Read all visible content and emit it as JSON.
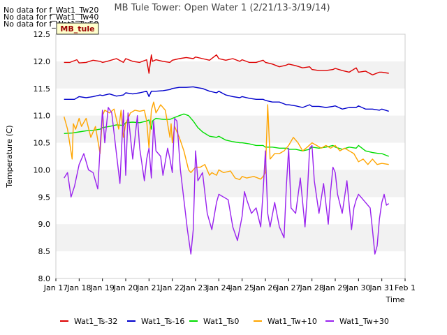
{
  "no_data_notes": [
    "No data for f_Wat1_Tw20",
    "No data for f_Wat1_Tw40",
    "No data for f_Wat1_Tw50"
  ],
  "badge_label": "MB_tule",
  "colors": {
    "badge_bg": "#ffffcc",
    "badge_text": "#990000",
    "band": "#f2f2f2"
  },
  "chart_data": {
    "type": "line",
    "title": "MB Tule Tower: Open Water 1 (2/21/13-3/19/14)",
    "xlabel": "Time",
    "ylabel": "Temperature (C)",
    "xlim": [
      17,
      32
    ],
    "ylim": [
      8.0,
      12.5
    ],
    "grid": "alternating horizontal bands",
    "legend_position": "bottom",
    "x_ticks": [
      {
        "value": 17,
        "label": "Jan 17"
      },
      {
        "value": 18,
        "label": "Jan 18"
      },
      {
        "value": 19,
        "label": "Jan 19"
      },
      {
        "value": 20,
        "label": "Jan 20"
      },
      {
        "value": 21,
        "label": "Jan 21"
      },
      {
        "value": 22,
        "label": "Jan 22"
      },
      {
        "value": 23,
        "label": "Jan 23"
      },
      {
        "value": 24,
        "label": "Jan 24"
      },
      {
        "value": 25,
        "label": "Jan 25"
      },
      {
        "value": 26,
        "label": "Jan 26"
      },
      {
        "value": 27,
        "label": "Jan 27"
      },
      {
        "value": 28,
        "label": "Jan 28"
      },
      {
        "value": 29,
        "label": "Jan 29"
      },
      {
        "value": 30,
        "label": "Jan 30"
      },
      {
        "value": 31,
        "label": "Jan 31"
      },
      {
        "value": 32,
        "label": "Feb 1"
      }
    ],
    "y_ticks": [
      8.0,
      8.5,
      9.0,
      9.5,
      10.0,
      10.5,
      11.0,
      11.5,
      12.0,
      12.5
    ],
    "series": [
      {
        "name": "Wat1_Ts-32",
        "color": "#dd0000",
        "x": [
          17.35,
          17.6,
          17.9,
          18.0,
          18.3,
          18.6,
          18.9,
          19.0,
          19.2,
          19.6,
          19.9,
          20.0,
          20.3,
          20.6,
          20.9,
          21.0,
          21.1,
          21.15,
          21.3,
          21.6,
          21.9,
          22.0,
          22.3,
          22.6,
          22.9,
          23.0,
          23.3,
          23.6,
          23.9,
          24.0,
          24.3,
          24.6,
          24.9,
          25.0,
          25.3,
          25.6,
          25.9,
          26.0,
          26.3,
          26.6,
          26.9,
          27.0,
          27.3,
          27.6,
          27.9,
          28.0,
          28.3,
          28.6,
          28.9,
          29.0,
          29.3,
          29.6,
          29.9,
          30.0,
          30.3,
          30.6,
          30.9,
          31.0,
          31.3
        ],
        "y": [
          11.98,
          11.98,
          12.03,
          11.97,
          11.98,
          12.02,
          12.0,
          11.98,
          12.0,
          12.05,
          11.98,
          12.05,
          12.0,
          11.98,
          12.03,
          11.78,
          12.12,
          12.0,
          12.03,
          12.0,
          11.98,
          12.02,
          12.05,
          12.07,
          12.05,
          12.08,
          12.05,
          12.02,
          12.12,
          12.05,
          12.02,
          12.05,
          12.0,
          12.03,
          11.98,
          11.98,
          12.02,
          11.98,
          11.95,
          11.9,
          11.93,
          11.95,
          11.92,
          11.88,
          11.9,
          11.85,
          11.83,
          11.83,
          11.85,
          11.87,
          11.83,
          11.8,
          11.88,
          11.8,
          11.82,
          11.75,
          11.8,
          11.8,
          11.78
        ]
      },
      {
        "name": "Wat1_Ts-16",
        "color": "#0000cc",
        "x": [
          17.35,
          17.8,
          18.0,
          18.3,
          18.6,
          18.9,
          19.0,
          19.3,
          19.6,
          19.9,
          20.0,
          20.3,
          20.6,
          20.9,
          21.0,
          21.1,
          21.3,
          21.6,
          21.9,
          22.0,
          22.3,
          22.6,
          22.9,
          23.0,
          23.3,
          23.6,
          23.9,
          24.0,
          24.3,
          24.6,
          24.9,
          25.0,
          25.3,
          25.6,
          25.9,
          26.0,
          26.3,
          26.6,
          26.9,
          27.0,
          27.3,
          27.6,
          27.9,
          28.0,
          28.3,
          28.6,
          28.9,
          29.0,
          29.3,
          29.6,
          29.9,
          30.0,
          30.3,
          30.6,
          30.9,
          31.0,
          31.3
        ],
        "y": [
          11.3,
          11.3,
          11.35,
          11.33,
          11.35,
          11.38,
          11.37,
          11.4,
          11.36,
          11.38,
          11.42,
          11.4,
          11.42,
          11.45,
          11.35,
          11.45,
          11.45,
          11.46,
          11.48,
          11.5,
          11.52,
          11.52,
          11.53,
          11.52,
          11.5,
          11.45,
          11.42,
          11.45,
          11.38,
          11.35,
          11.33,
          11.35,
          11.32,
          11.3,
          11.3,
          11.28,
          11.25,
          11.25,
          11.2,
          11.2,
          11.18,
          11.15,
          11.2,
          11.17,
          11.17,
          11.15,
          11.17,
          11.18,
          11.12,
          11.15,
          11.15,
          11.18,
          11.12,
          11.12,
          11.1,
          11.12,
          11.08
        ]
      },
      {
        "name": "Wat1_Ts0",
        "color": "#00dd00",
        "x": [
          17.35,
          17.7,
          18.0,
          18.3,
          18.6,
          18.9,
          19.0,
          19.3,
          19.6,
          19.9,
          20.0,
          20.3,
          20.6,
          20.9,
          21.0,
          21.1,
          21.15,
          21.2,
          21.3,
          21.6,
          21.9,
          22.0,
          22.3,
          22.5,
          22.7,
          22.9,
          23.1,
          23.3,
          23.6,
          23.9,
          24.0,
          24.3,
          24.6,
          24.9,
          25.0,
          25.3,
          25.6,
          25.9,
          26.0,
          26.3,
          26.6,
          26.9,
          27.0,
          27.3,
          27.6,
          27.9,
          28.0,
          28.3,
          28.6,
          28.9,
          29.0,
          29.3,
          29.6,
          29.9,
          30.0,
          30.3,
          30.6,
          30.9,
          31.0,
          31.3
        ],
        "y": [
          10.67,
          10.68,
          10.7,
          10.72,
          10.73,
          10.75,
          10.78,
          10.8,
          10.83,
          10.82,
          10.87,
          10.88,
          10.87,
          10.9,
          10.92,
          10.75,
          10.9,
          10.92,
          10.95,
          10.93,
          10.93,
          10.95,
          11.0,
          11.03,
          11.0,
          10.9,
          10.78,
          10.7,
          10.62,
          10.6,
          10.62,
          10.55,
          10.52,
          10.5,
          10.5,
          10.48,
          10.45,
          10.45,
          10.42,
          10.42,
          10.4,
          10.4,
          10.38,
          10.38,
          10.35,
          10.38,
          10.42,
          10.4,
          10.42,
          10.45,
          10.42,
          10.38,
          10.42,
          10.4,
          10.45,
          10.35,
          10.32,
          10.3,
          10.3,
          10.25
        ]
      },
      {
        "name": "Wat1_Tw+10",
        "color": "#ffa500",
        "x": [
          17.35,
          17.5,
          17.7,
          17.75,
          17.85,
          18.0,
          18.1,
          18.3,
          18.5,
          18.7,
          18.9,
          19.0,
          19.1,
          19.3,
          19.5,
          19.7,
          19.8,
          19.9,
          20.0,
          20.2,
          20.4,
          20.6,
          20.8,
          20.9,
          21.0,
          21.1,
          21.2,
          21.3,
          21.5,
          21.7,
          21.9,
          21.95,
          22.0,
          22.1,
          22.3,
          22.5,
          22.7,
          22.8,
          23.0,
          23.2,
          23.4,
          23.6,
          23.7,
          23.9,
          24.0,
          24.2,
          24.5,
          24.7,
          24.9,
          25.0,
          25.2,
          25.5,
          25.8,
          25.9,
          26.0,
          26.1,
          26.15,
          26.2,
          26.4,
          26.6,
          26.8,
          27.0,
          27.2,
          27.4,
          27.6,
          27.8,
          28.0,
          28.2,
          28.4,
          28.6,
          28.8,
          29.0,
          29.2,
          29.4,
          29.6,
          29.8,
          30.0,
          30.2,
          30.4,
          30.6,
          30.8,
          31.0,
          31.3
        ],
        "y": [
          10.98,
          10.75,
          10.2,
          10.85,
          10.75,
          10.95,
          10.8,
          10.95,
          10.6,
          10.8,
          10.3,
          11.0,
          11.1,
          11.05,
          11.12,
          10.75,
          11.1,
          10.6,
          10.85,
          11.05,
          11.1,
          11.08,
          11.1,
          10.9,
          10.4,
          11.1,
          11.25,
          11.05,
          11.2,
          11.1,
          10.6,
          10.85,
          10.5,
          10.8,
          10.6,
          10.35,
          10.0,
          9.95,
          10.05,
          10.05,
          10.1,
          9.9,
          9.95,
          9.9,
          10.0,
          9.95,
          9.98,
          9.85,
          9.82,
          9.88,
          9.85,
          9.88,
          9.83,
          9.88,
          9.95,
          11.2,
          10.7,
          10.2,
          10.3,
          10.3,
          10.35,
          10.45,
          10.6,
          10.5,
          10.35,
          10.42,
          10.5,
          10.45,
          10.4,
          10.45,
          10.4,
          10.45,
          10.35,
          10.4,
          10.35,
          10.3,
          10.15,
          10.2,
          10.1,
          10.2,
          10.1,
          10.12,
          10.1
        ]
      },
      {
        "name": "Wat1_Tw+30",
        "color": "#9922ee",
        "x": [
          17.35,
          17.5,
          17.65,
          17.8,
          18.0,
          18.2,
          18.4,
          18.6,
          18.8,
          18.9,
          19.0,
          19.1,
          19.25,
          19.4,
          19.6,
          19.75,
          19.9,
          20.0,
          20.1,
          20.3,
          20.5,
          20.6,
          20.8,
          20.9,
          21.0,
          21.1,
          21.2,
          21.3,
          21.5,
          21.6,
          21.8,
          21.9,
          22.0,
          22.1,
          22.2,
          22.35,
          22.5,
          22.65,
          22.8,
          22.9,
          23.0,
          23.1,
          23.3,
          23.5,
          23.7,
          23.9,
          24.0,
          24.2,
          24.4,
          24.6,
          24.8,
          25.0,
          25.1,
          25.2,
          25.4,
          25.6,
          25.8,
          25.9,
          26.0,
          26.1,
          26.2,
          26.4,
          26.6,
          26.8,
          26.9,
          27.0,
          27.1,
          27.3,
          27.5,
          27.7,
          27.8,
          27.9,
          28.0,
          28.1,
          28.3,
          28.5,
          28.7,
          28.8,
          28.9,
          29.0,
          29.1,
          29.3,
          29.5,
          29.7,
          29.8,
          29.9,
          30.0,
          30.1,
          30.3,
          30.5,
          30.6,
          30.7,
          30.8,
          30.9,
          31.0,
          31.1,
          31.2,
          31.3
        ],
        "y": [
          9.85,
          9.95,
          9.5,
          9.7,
          10.1,
          10.3,
          10.0,
          9.95,
          9.65,
          10.4,
          11.1,
          10.5,
          11.15,
          11.05,
          10.3,
          9.75,
          11.1,
          9.9,
          11.05,
          10.2,
          11.0,
          10.4,
          9.8,
          10.2,
          10.4,
          9.85,
          10.9,
          10.35,
          10.25,
          9.9,
          10.4,
          10.2,
          9.95,
          10.95,
          10.9,
          10.0,
          9.45,
          8.9,
          8.45,
          8.9,
          10.35,
          9.8,
          9.95,
          9.2,
          8.9,
          9.4,
          9.55,
          9.5,
          9.45,
          8.95,
          8.7,
          9.15,
          9.6,
          9.45,
          9.2,
          9.3,
          8.95,
          9.6,
          10.35,
          9.2,
          8.95,
          9.4,
          8.95,
          8.75,
          9.7,
          10.4,
          9.3,
          9.2,
          9.85,
          8.95,
          9.55,
          10.4,
          10.45,
          9.8,
          9.2,
          9.75,
          9.0,
          9.6,
          10.05,
          9.95,
          9.55,
          9.2,
          9.8,
          8.9,
          9.3,
          9.45,
          9.55,
          9.5,
          9.4,
          9.3,
          8.9,
          8.45,
          8.6,
          9.1,
          9.4,
          9.55,
          9.35,
          9.38
        ]
      }
    ]
  }
}
